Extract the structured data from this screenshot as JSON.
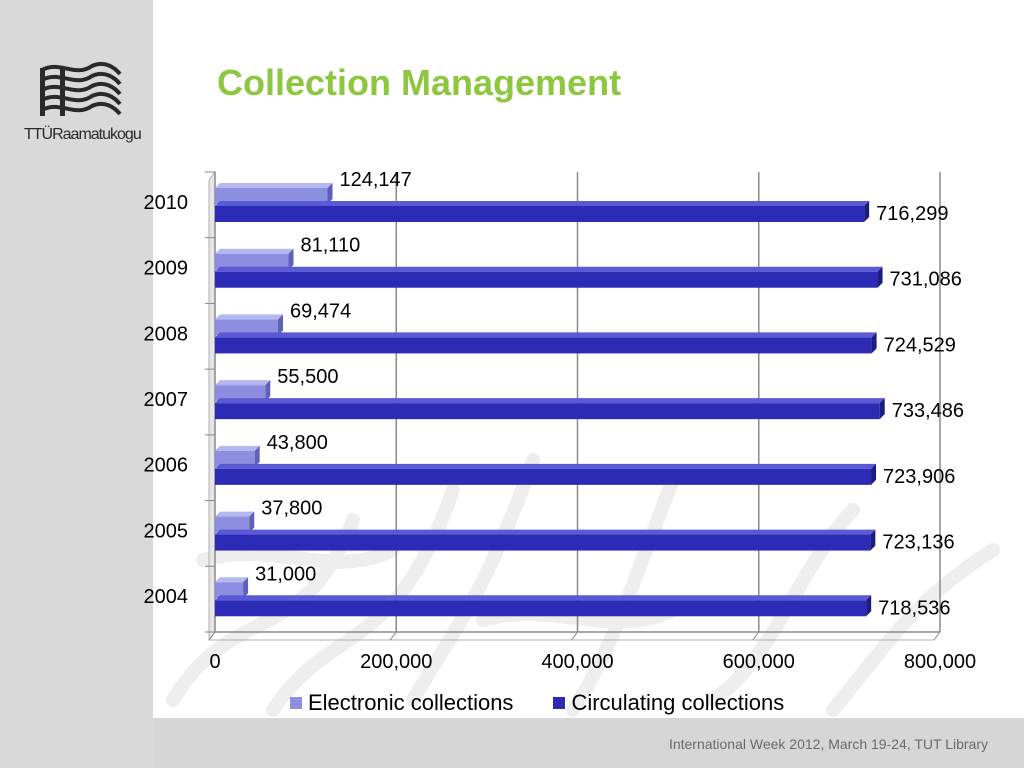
{
  "slide": {
    "title": "Collection Management",
    "logo_text": "TTÜRaamatukogu",
    "footer": "International Week 2012, March 19-24, TUT Library"
  },
  "colors": {
    "title": "#8dc63f",
    "electronic": "#8c8ee0",
    "circulating": "#2b2bb5",
    "left_band": "#d9d9d9"
  },
  "chart_data": {
    "type": "bar",
    "orientation": "horizontal",
    "categories": [
      "2010",
      "2009",
      "2008",
      "2007",
      "2006",
      "2005",
      "2004"
    ],
    "series": [
      {
        "name": "Electronic collections",
        "values": [
          124147,
          81110,
          69474,
          55500,
          43800,
          37800,
          31000
        ],
        "labels": [
          "124,147",
          "81,110",
          "69,474",
          "55,500",
          "43,800",
          "37,800",
          "31,000"
        ]
      },
      {
        "name": "Circulating collections",
        "values": [
          716299,
          731086,
          724529,
          733486,
          723906,
          723136,
          718536
        ],
        "labels": [
          "716,299",
          "731,086",
          "724,529",
          "733,486",
          "723,906",
          "723,136",
          "718,536"
        ]
      }
    ],
    "xlim": [
      0,
      800000
    ],
    "xticks": [
      0,
      200000,
      400000,
      600000,
      800000
    ],
    "xtick_labels": [
      "0",
      "200,000",
      "400,000",
      "600,000",
      "800,000"
    ],
    "grid": true,
    "legend_position": "bottom"
  }
}
